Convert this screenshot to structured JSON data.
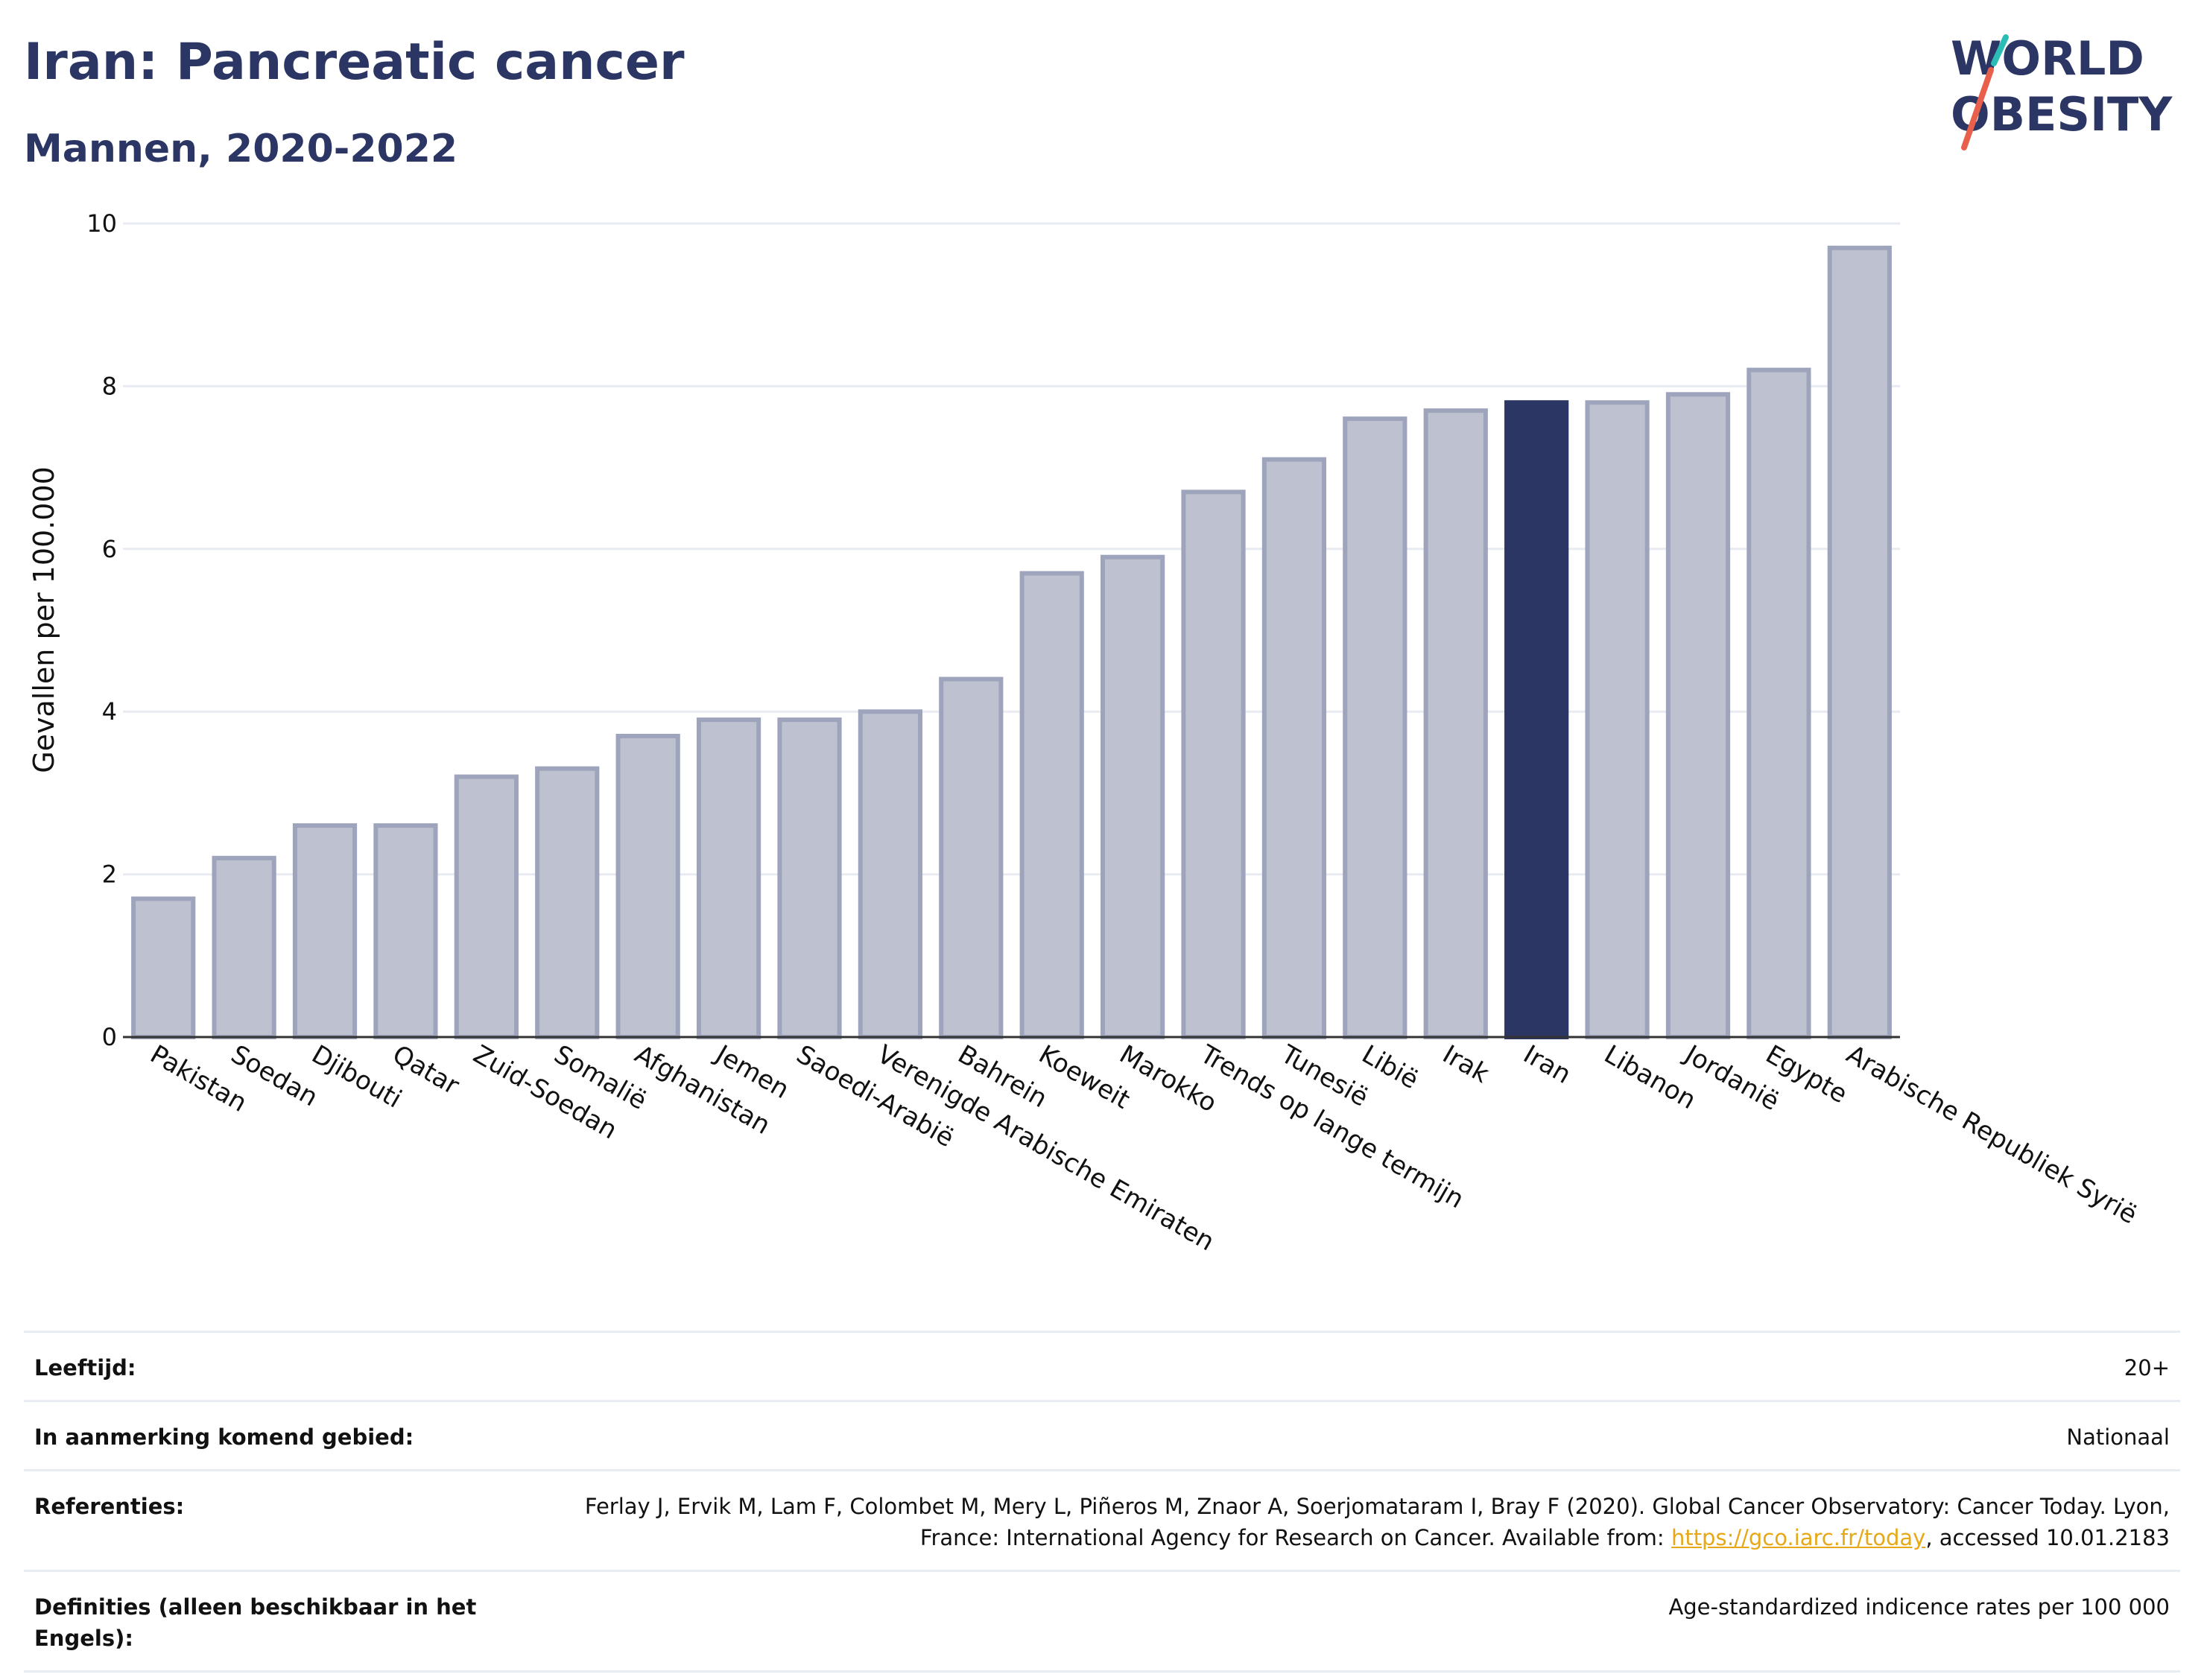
{
  "header": {
    "title": "Iran: Pancreatic cancer",
    "subtitle": "Mannen, 2020-2022"
  },
  "logo": {
    "line1": "WORLD",
    "line2": "OBESITY",
    "text_color": "#2b3664",
    "slash_color_top": "#2bbcb5",
    "slash_color_bottom": "#e8604c"
  },
  "chart_data": {
    "type": "bar",
    "title": "Iran: Pancreatic cancer",
    "subtitle": "Mannen, 2020-2022",
    "ylabel": "Gevallen per 100.000",
    "xlabel": "",
    "ylim": [
      0,
      10
    ],
    "yticks": [
      0,
      2,
      4,
      6,
      8,
      10
    ],
    "grid": true,
    "categories": [
      "Pakistan",
      "Soedan",
      "Djibouti",
      "Qatar",
      "Zuid-Soedan",
      "Somalië",
      "Afghanistan",
      "Jemen",
      "Saoedi-Arabië",
      "Verenigde Arabische Emiraten",
      "Bahrein",
      "Koeweit",
      "Marokko",
      "Trends op lange termijn",
      "Tunesië",
      "Libië",
      "Irak",
      "Iran",
      "Libanon",
      "Jordanië",
      "Egypte",
      "Arabische Republiek Syrië"
    ],
    "values": [
      1.7,
      2.2,
      2.6,
      2.6,
      3.2,
      3.3,
      3.7,
      3.9,
      3.9,
      4.0,
      4.4,
      5.7,
      5.9,
      6.7,
      7.1,
      7.6,
      7.7,
      7.8,
      7.8,
      7.9,
      8.2,
      9.7
    ],
    "highlight": "Iran",
    "colors": {
      "bar": "#bec2d0",
      "bar_border": "#9ea4bb",
      "highlight": "#2b3664"
    }
  },
  "meta": {
    "age_label": "Leeftijd:",
    "age_value": "20+",
    "area_label": "In aanmerking komend gebied:",
    "area_value": "Nationaal",
    "ref_label": "Referenties:",
    "ref_text_before": "Ferlay J, Ervik M, Lam F, Colombet M, Mery L, Piñeros M, Znaor A, Soerjomataram I, Bray F (2020). Global Cancer Observatory: Cancer Today. Lyon, France: International Agency for Research on Cancer. Available from: ",
    "ref_link": "https://gco.iarc.fr/today",
    "ref_text_after": ", accessed 10.01.2183",
    "def_label": "Definities (alleen beschikbaar in het Engels):",
    "def_value": "Age-standardized indicence rates per 100 000"
  }
}
